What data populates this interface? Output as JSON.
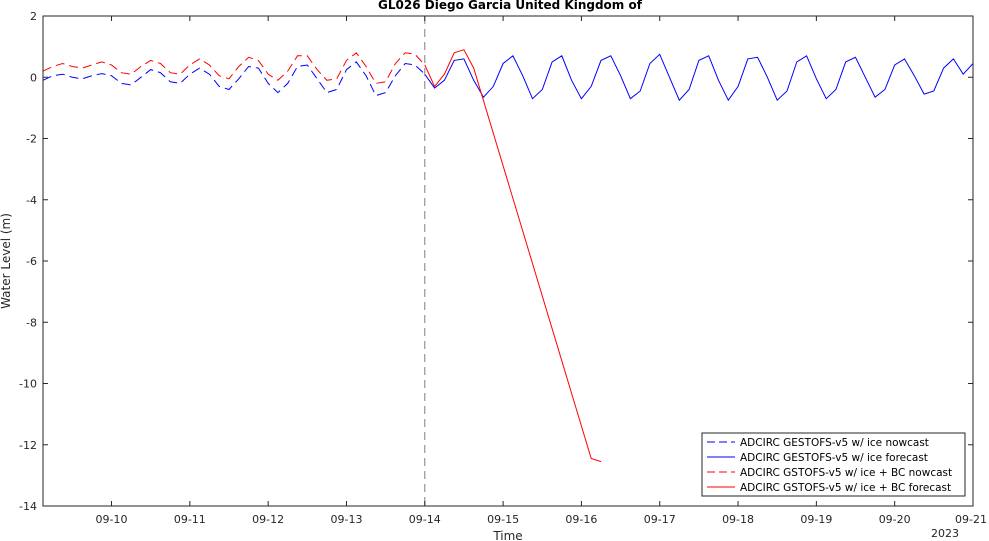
{
  "chart_data": {
    "type": "line",
    "title": "GL026 Diego Garcia United Kingdom of",
    "xlabel": "Time",
    "ylabel": "Water Level (m)",
    "year_label": "2023",
    "xlim": [
      "2023-09-09 03:00",
      "2023-09-21 00:00"
    ],
    "ylim": [
      -14,
      2
    ],
    "yticks": [
      2,
      0,
      -2,
      -4,
      -6,
      -8,
      -10,
      -12,
      -14
    ],
    "xticks": [
      "09-10",
      "09-11",
      "09-12",
      "09-13",
      "09-14",
      "09-15",
      "09-16",
      "09-17",
      "09-18",
      "09-19",
      "09-20",
      "09-21"
    ],
    "nowcast_end": "2023-09-14 00:00",
    "grid": false,
    "legend_position": "bottom-right",
    "colors": {
      "blue": "#0000ff",
      "red": "#ff0000",
      "vline": "#808080",
      "axis": "#262626"
    },
    "series": [
      {
        "name": "ADCIRC GESTOFS-v5 w/ ice nowcast",
        "color": "#0000ff",
        "dash": true,
        "x": [
          "2023-09-09 03:00",
          "2023-09-09 06:00",
          "2023-09-09 09:00",
          "2023-09-09 12:00",
          "2023-09-09 15:00",
          "2023-09-09 18:00",
          "2023-09-09 21:00",
          "2023-09-10 00:00",
          "2023-09-10 03:00",
          "2023-09-10 06:00",
          "2023-09-10 09:00",
          "2023-09-10 12:00",
          "2023-09-10 15:00",
          "2023-09-10 18:00",
          "2023-09-10 21:00",
          "2023-09-11 00:00",
          "2023-09-11 03:00",
          "2023-09-11 06:00",
          "2023-09-11 09:00",
          "2023-09-11 12:00",
          "2023-09-11 15:00",
          "2023-09-11 18:00",
          "2023-09-11 21:00",
          "2023-09-12 00:00",
          "2023-09-12 03:00",
          "2023-09-12 06:00",
          "2023-09-12 09:00",
          "2023-09-12 12:00",
          "2023-09-12 15:00",
          "2023-09-12 18:00",
          "2023-09-12 21:00",
          "2023-09-13 00:00",
          "2023-09-13 03:00",
          "2023-09-13 06:00",
          "2023-09-13 09:00",
          "2023-09-13 12:00",
          "2023-09-13 15:00",
          "2023-09-13 18:00",
          "2023-09-13 21:00",
          "2023-09-14 00:00"
        ],
        "y": [
          -0.1,
          0.05,
          0.1,
          0.0,
          -0.05,
          0.05,
          0.12,
          0.05,
          -0.2,
          -0.25,
          0.0,
          0.25,
          0.15,
          -0.15,
          -0.2,
          0.1,
          0.3,
          0.1,
          -0.3,
          -0.4,
          -0.05,
          0.35,
          0.3,
          -0.2,
          -0.5,
          -0.2,
          0.35,
          0.4,
          -0.05,
          -0.5,
          -0.4,
          0.25,
          0.5,
          0.05,
          -0.6,
          -0.5,
          0.05,
          0.45,
          0.4,
          0.1
        ]
      },
      {
        "name": "ADCIRC GESTOFS-v5 w/ ice forecast",
        "color": "#0000ff",
        "dash": false,
        "x": [
          "2023-09-14 00:00",
          "2023-09-14 03:00",
          "2023-09-14 06:00",
          "2023-09-14 09:00",
          "2023-09-14 12:00",
          "2023-09-14 15:00",
          "2023-09-14 18:00",
          "2023-09-14 21:00",
          "2023-09-15 00:00",
          "2023-09-15 03:00",
          "2023-09-15 06:00",
          "2023-09-15 09:00",
          "2023-09-15 12:00",
          "2023-09-15 15:00",
          "2023-09-15 18:00",
          "2023-09-15 21:00",
          "2023-09-16 00:00",
          "2023-09-16 03:00",
          "2023-09-16 06:00",
          "2023-09-16 09:00",
          "2023-09-16 12:00",
          "2023-09-16 15:00",
          "2023-09-16 18:00",
          "2023-09-16 21:00",
          "2023-09-17 00:00",
          "2023-09-17 03:00",
          "2023-09-17 06:00",
          "2023-09-17 09:00",
          "2023-09-17 12:00",
          "2023-09-17 15:00",
          "2023-09-17 18:00",
          "2023-09-17 21:00",
          "2023-09-18 00:00",
          "2023-09-18 03:00",
          "2023-09-18 06:00",
          "2023-09-18 09:00",
          "2023-09-18 12:00",
          "2023-09-18 15:00",
          "2023-09-18 18:00",
          "2023-09-18 21:00",
          "2023-09-19 00:00",
          "2023-09-19 03:00",
          "2023-09-19 06:00",
          "2023-09-19 09:00",
          "2023-09-19 12:00",
          "2023-09-19 15:00",
          "2023-09-19 18:00",
          "2023-09-19 21:00",
          "2023-09-20 00:00",
          "2023-09-20 03:00",
          "2023-09-20 06:00",
          "2023-09-20 09:00",
          "2023-09-20 12:00",
          "2023-09-20 15:00",
          "2023-09-20 18:00",
          "2023-09-20 21:00",
          "2023-09-21 00:00"
        ],
        "y": [
          0.1,
          -0.35,
          -0.1,
          0.55,
          0.6,
          -0.1,
          -0.65,
          -0.3,
          0.45,
          0.7,
          0.05,
          -0.7,
          -0.4,
          0.5,
          0.7,
          -0.1,
          -0.7,
          -0.3,
          0.55,
          0.7,
          0.05,
          -0.7,
          -0.45,
          0.45,
          0.75,
          0.0,
          -0.75,
          -0.4,
          0.55,
          0.7,
          -0.1,
          -0.75,
          -0.3,
          0.6,
          0.65,
          0.0,
          -0.75,
          -0.45,
          0.5,
          0.7,
          -0.05,
          -0.7,
          -0.4,
          0.5,
          0.65,
          0.0,
          -0.65,
          -0.4,
          0.4,
          0.6,
          0.05,
          -0.55,
          -0.45,
          0.3,
          0.6,
          0.1,
          0.45
        ]
      },
      {
        "name": "ADCIRC GSTOFS-v5 w/ ice + BC nowcast",
        "color": "#ff0000",
        "dash": true,
        "x": [
          "2023-09-09 03:00",
          "2023-09-09 06:00",
          "2023-09-09 09:00",
          "2023-09-09 12:00",
          "2023-09-09 15:00",
          "2023-09-09 18:00",
          "2023-09-09 21:00",
          "2023-09-10 00:00",
          "2023-09-10 03:00",
          "2023-09-10 06:00",
          "2023-09-10 09:00",
          "2023-09-10 12:00",
          "2023-09-10 15:00",
          "2023-09-10 18:00",
          "2023-09-10 21:00",
          "2023-09-11 00:00",
          "2023-09-11 03:00",
          "2023-09-11 06:00",
          "2023-09-11 09:00",
          "2023-09-11 12:00",
          "2023-09-11 15:00",
          "2023-09-11 18:00",
          "2023-09-11 21:00",
          "2023-09-12 00:00",
          "2023-09-12 03:00",
          "2023-09-12 06:00",
          "2023-09-12 09:00",
          "2023-09-12 12:00",
          "2023-09-12 15:00",
          "2023-09-12 18:00",
          "2023-09-12 21:00",
          "2023-09-13 00:00",
          "2023-09-13 03:00",
          "2023-09-13 06:00",
          "2023-09-13 09:00",
          "2023-09-13 12:00",
          "2023-09-13 15:00",
          "2023-09-13 18:00",
          "2023-09-13 21:00",
          "2023-09-14 00:00"
        ],
        "y": [
          0.2,
          0.35,
          0.45,
          0.35,
          0.3,
          0.4,
          0.5,
          0.4,
          0.15,
          0.1,
          0.35,
          0.55,
          0.45,
          0.15,
          0.1,
          0.4,
          0.6,
          0.4,
          0.05,
          -0.05,
          0.35,
          0.65,
          0.55,
          0.1,
          -0.1,
          0.2,
          0.7,
          0.7,
          0.25,
          -0.1,
          -0.05,
          0.55,
          0.8,
          0.35,
          -0.2,
          -0.15,
          0.45,
          0.8,
          0.75,
          0.4
        ]
      },
      {
        "name": "ADCIRC GSTOFS-v5 w/ ice + BC forecast",
        "color": "#ff0000",
        "dash": false,
        "x": [
          "2023-09-14 00:00",
          "2023-09-14 03:00",
          "2023-09-14 06:00",
          "2023-09-14 09:00",
          "2023-09-14 12:00",
          "2023-09-14 15:00",
          "2023-09-16 03:00",
          "2023-09-16 06:00"
        ],
        "y": [
          0.4,
          -0.3,
          0.1,
          0.8,
          0.9,
          0.3,
          -12.45,
          -12.55
        ]
      }
    ]
  }
}
